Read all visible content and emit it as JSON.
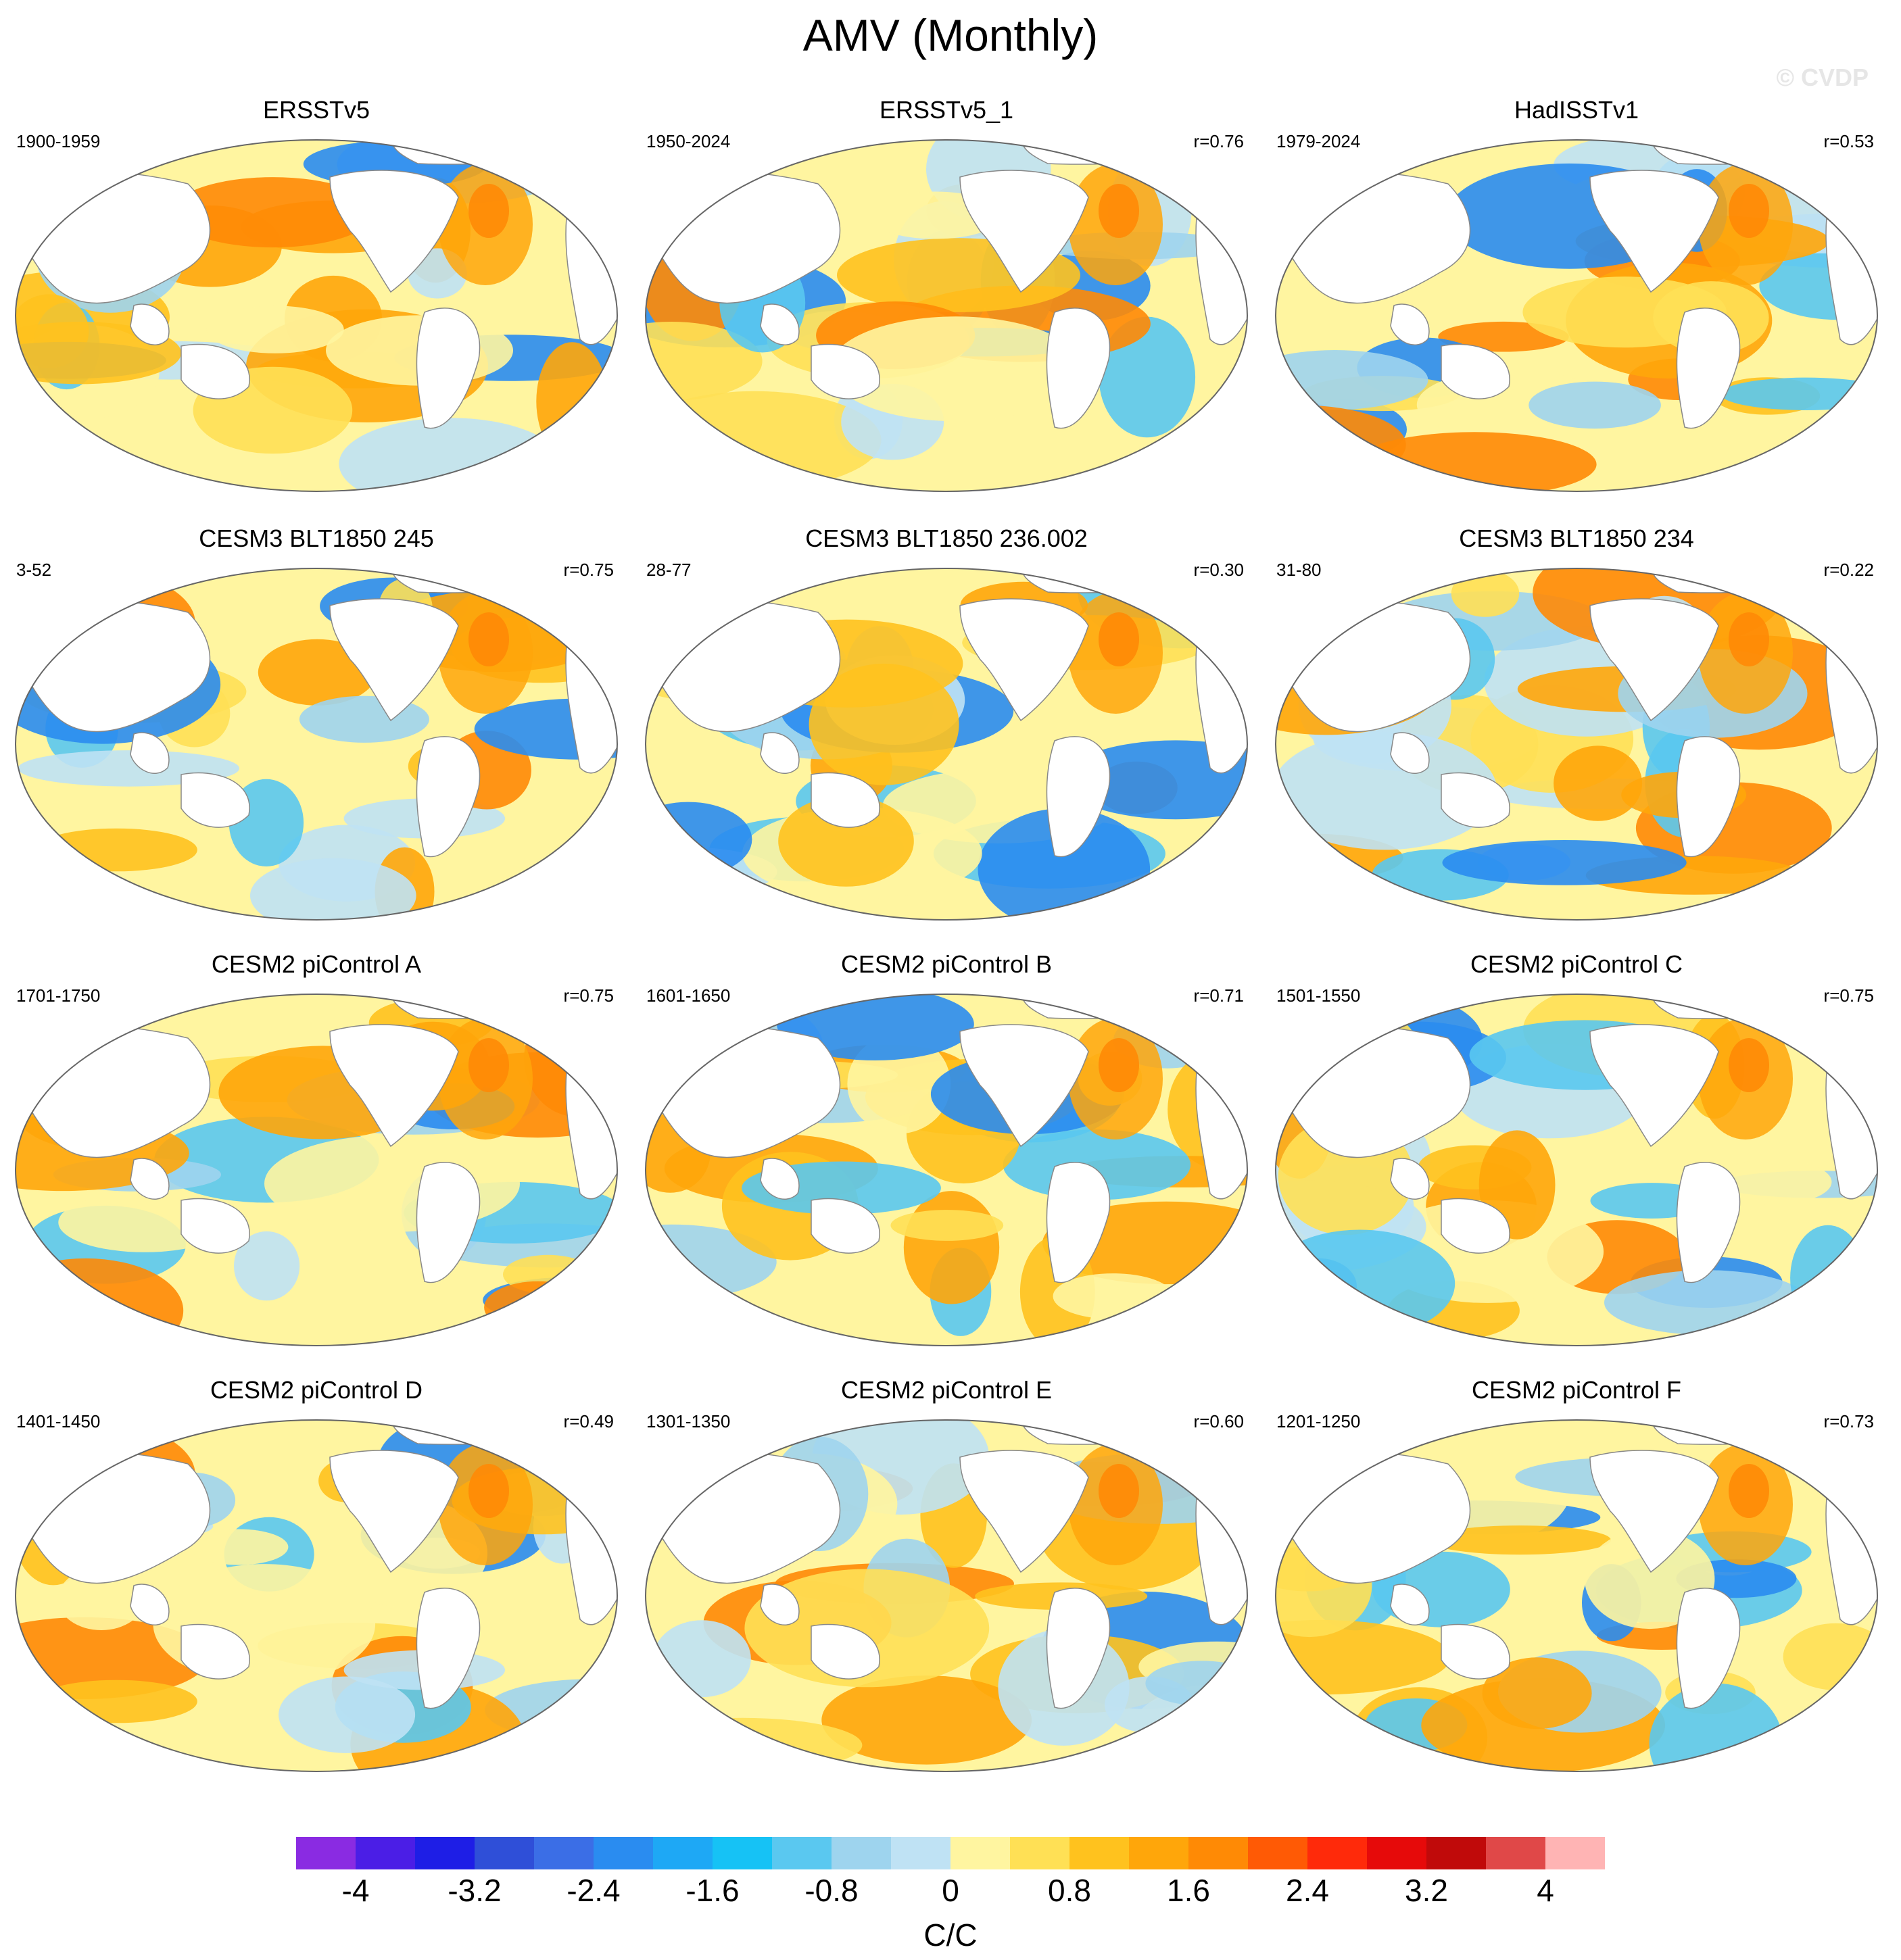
{
  "title": "AMV (Monthly)",
  "watermark": "© CVDP",
  "panels": [
    {
      "title": "ERSSTv5",
      "period": "1900-1959",
      "r": ""
    },
    {
      "title": "ERSSTv5_1",
      "period": "1950-2024",
      "r": "r=0.76"
    },
    {
      "title": "HadISSTv1",
      "period": "1979-2024",
      "r": "r=0.53"
    },
    {
      "title": "CESM3 BLT1850 245",
      "period": "3-52",
      "r": "r=0.75"
    },
    {
      "title": "CESM3 BLT1850 236.002",
      "period": "28-77",
      "r": "r=0.30"
    },
    {
      "title": "CESM3 BLT1850 234",
      "period": "31-80",
      "r": "r=0.22"
    },
    {
      "title": "CESM2 piControl A",
      "period": "1701-1750",
      "r": "r=0.75"
    },
    {
      "title": "CESM2 piControl B",
      "period": "1601-1650",
      "r": "r=0.71"
    },
    {
      "title": "CESM2 piControl C",
      "period": "1501-1550",
      "r": "r=0.75"
    },
    {
      "title": "CESM2 piControl D",
      "period": "1401-1450",
      "r": "r=0.49"
    },
    {
      "title": "CESM2 piControl E",
      "period": "1301-1350",
      "r": "r=0.60"
    },
    {
      "title": "CESM2 piControl F",
      "period": "1201-1250",
      "r": "r=0.73"
    }
  ],
  "colorbar": {
    "colors": [
      "#8a2be2",
      "#4b1ee6",
      "#1e1ee6",
      "#2f4fd8",
      "#3b6ee6",
      "#2a8cf0",
      "#1ea8f5",
      "#16c2f5",
      "#5ac8f0",
      "#9ed4ee",
      "#bfe2f4",
      "#fff5a0",
      "#ffe055",
      "#ffc21e",
      "#ffa60a",
      "#ff8a05",
      "#ff5a05",
      "#ff2a0a",
      "#e60a0a",
      "#c00a0a",
      "#e04848",
      "#ffb4b4"
    ],
    "tick_labels": [
      "-4",
      "-3.2",
      "-2.4",
      "-1.6",
      "-0.8",
      "0",
      "0.8",
      "1.6",
      "2.4",
      "3.2",
      "4"
    ],
    "units": "C/C"
  }
}
